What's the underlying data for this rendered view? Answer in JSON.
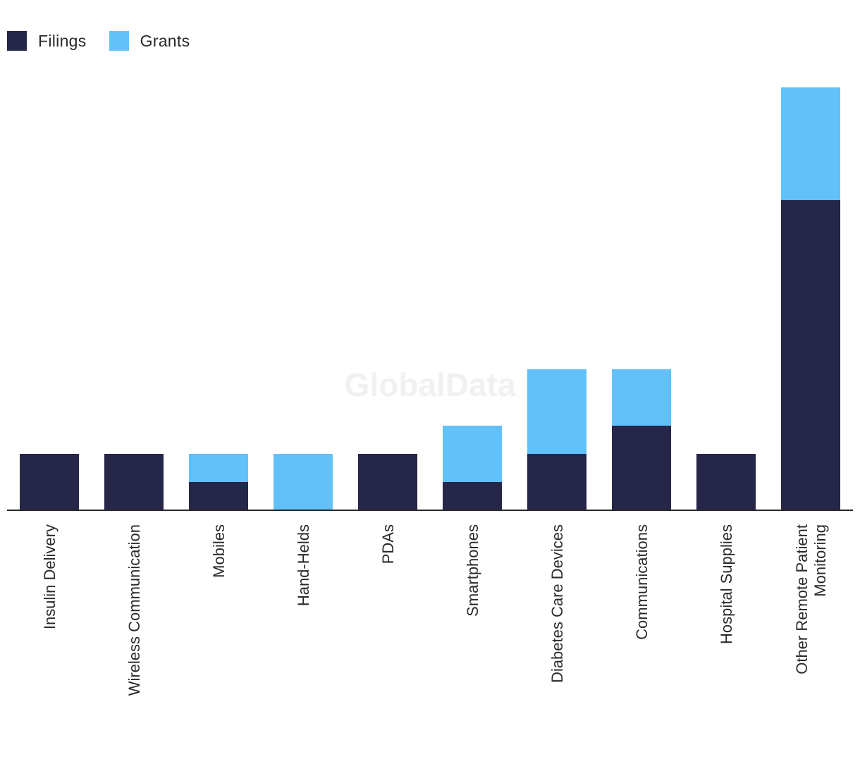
{
  "chart_data": {
    "type": "bar",
    "stacked": true,
    "title": "",
    "xlabel": "",
    "ylabel": "",
    "ylim": [
      0,
      15
    ],
    "grid": false,
    "legend_position": "top-left",
    "watermark": "GlobalData",
    "categories": [
      [
        "Insulin Delivery"
      ],
      [
        "Wireless Communication"
      ],
      [
        "Mobiles"
      ],
      [
        "Hand-Helds"
      ],
      [
        "PDAs"
      ],
      [
        "Smartphones"
      ],
      [
        "Diabetes Care Devices"
      ],
      [
        "Communications"
      ],
      [
        "Hospital Supplies"
      ],
      [
        "Other Remote Patient",
        "Monitoring"
      ]
    ],
    "series": [
      {
        "name": "Filings",
        "color": "#262649",
        "values": [
          2,
          2,
          1,
          0,
          2,
          1,
          2,
          3,
          2,
          11
        ]
      },
      {
        "name": "Grants",
        "color": "#62c1f9",
        "values": [
          0,
          0,
          1,
          2,
          0,
          2,
          3,
          2,
          0,
          4
        ]
      }
    ]
  }
}
